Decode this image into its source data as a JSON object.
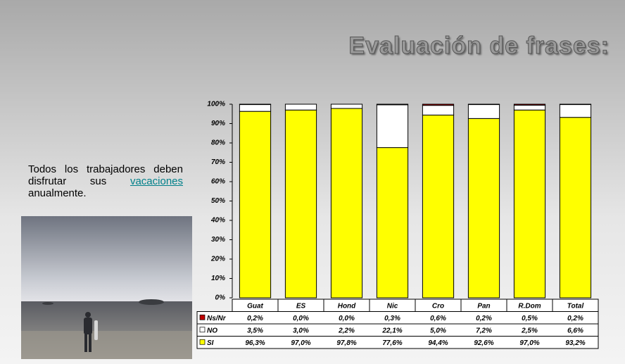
{
  "title": "Evaluación de frases:",
  "text": {
    "before": "Todos los trabajadores deben disfrutar sus",
    "link": "vacaciones",
    "after": "anualmente."
  },
  "chart_data": {
    "type": "stacked-bar",
    "categories": [
      "Guat",
      "ES",
      "Hond",
      "Nic",
      "Cro",
      "Pan",
      "R.Dom",
      "Total"
    ],
    "series": [
      {
        "name": "Ns/Nr",
        "color": "#c00000",
        "values": [
          0.2,
          0.0,
          0.0,
          0.3,
          0.6,
          0.2,
          0.5,
          0.2
        ],
        "value_labels": [
          "0,2%",
          "0,0%",
          "0,0%",
          "0,3%",
          "0,6%",
          "0,2%",
          "0,5%",
          "0,2%"
        ]
      },
      {
        "name": "NO",
        "color": "#ffffff",
        "values": [
          3.5,
          3.0,
          2.2,
          22.1,
          5.0,
          7.2,
          2.5,
          6.6
        ],
        "value_labels": [
          "3,5%",
          "3,0%",
          "2,2%",
          "22,1%",
          "5,0%",
          "7,2%",
          "2,5%",
          "6,6%"
        ]
      },
      {
        "name": "SI",
        "color": "#ffff00",
        "values": [
          96.3,
          97.0,
          97.8,
          77.6,
          94.4,
          92.6,
          97.0,
          93.2
        ],
        "value_labels": [
          "96,3%",
          "97,0%",
          "97,8%",
          "77,6%",
          "94,4%",
          "92,6%",
          "97,0%",
          "93,2%"
        ]
      }
    ],
    "ylim": [
      0,
      100
    ],
    "yticks": [
      {
        "value": 0,
        "label": "0%"
      },
      {
        "value": 10,
        "label": "10%"
      },
      {
        "value": 20,
        "label": "20%"
      },
      {
        "value": 30,
        "label": "30%"
      },
      {
        "value": 40,
        "label": "40%"
      },
      {
        "value": 50,
        "label": "50%"
      },
      {
        "value": 60,
        "label": "60%"
      },
      {
        "value": 70,
        "label": "70%"
      },
      {
        "value": 80,
        "label": "80%"
      },
      {
        "value": 90,
        "label": "90%"
      },
      {
        "value": 100,
        "label": "100%"
      }
    ]
  }
}
